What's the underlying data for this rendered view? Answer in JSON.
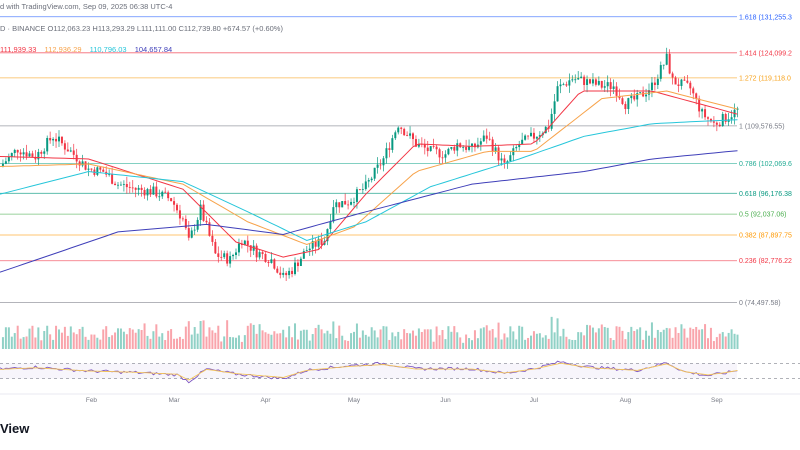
{
  "header": {
    "source_line": "D · BINANCE  O112,063.23  H113,293.29  L111,111.00  C112,739.80  +674.57 (+0.60%)",
    "published_line": "d with TradingView.com, Sep 09, 2025 06:38 UTC-4",
    "moving_averages": [
      {
        "value": "111,939.33",
        "color": "#f23645"
      },
      {
        "value": "112,936.29",
        "color": "#f7a34b"
      },
      {
        "value": "110,796.03",
        "color": "#26c6da"
      },
      {
        "value": "104,657.84",
        "color": "#3f3fb9"
      }
    ]
  },
  "footer": {
    "logo_text": "View"
  },
  "colors": {
    "up": "#089981",
    "down": "#f23645",
    "rsi": "#7e57c2",
    "rsi_ma": "#f4c45a"
  },
  "chart_data": {
    "type": "candlestick",
    "title": "",
    "x_axis_labels": [
      "Feb",
      "Mar",
      "Apr",
      "May",
      "Jun",
      "Jul",
      "Aug",
      "Sep"
    ],
    "x_month_anchors": [
      {
        "label": "Feb",
        "day": 31
      },
      {
        "label": "Mar",
        "day": 59
      },
      {
        "label": "Apr",
        "day": 90
      },
      {
        "label": "May",
        "day": 120
      },
      {
        "label": "Jun",
        "day": 151
      },
      {
        "label": "Jul",
        "day": 181
      },
      {
        "label": "Aug",
        "day": 212
      },
      {
        "label": "Sep",
        "day": 243
      }
    ],
    "ylim": [
      71000,
      133000
    ],
    "fib_levels": [
      {
        "label": "1.618 (131,255.3",
        "price": 131255.3,
        "color": "#2962ff"
      },
      {
        "label": "1.414 (124,099.2",
        "price": 124099.2,
        "color": "#f23645"
      },
      {
        "label": "1.272 (119,118.0",
        "price": 119118.0,
        "color": "#f7a21b"
      },
      {
        "label": "1 (109,576.55)",
        "price": 109576.55,
        "color": "#787b86"
      },
      {
        "label": "0.786 (102,069.6",
        "price": 102069.6,
        "color": "#22ab94"
      },
      {
        "label": "0.618 (96,176.38",
        "price": 96176.38,
        "color": "#089981"
      },
      {
        "label": "0.5 (92,037.06)",
        "price": 92037.06,
        "color": "#4caf50"
      },
      {
        "label": "0.382 (87,897.75",
        "price": 87897.75,
        "color": "#ff9800"
      },
      {
        "label": "0.236 (82,776.22",
        "price": 82776.22,
        "color": "#f23645"
      },
      {
        "label": "0 (74,497.58)",
        "price": 74497.58,
        "color": "#787b86"
      }
    ],
    "close_path": [
      {
        "day": 0,
        "price": 101500
      },
      {
        "day": 6,
        "price": 105000
      },
      {
        "day": 12,
        "price": 103500
      },
      {
        "day": 18,
        "price": 107500
      },
      {
        "day": 24,
        "price": 104500
      },
      {
        "day": 30,
        "price": 101000
      },
      {
        "day": 35,
        "price": 100500
      },
      {
        "day": 40,
        "price": 98000
      },
      {
        "day": 46,
        "price": 97000
      },
      {
        "day": 52,
        "price": 96500
      },
      {
        "day": 58,
        "price": 95000
      },
      {
        "day": 62,
        "price": 91000
      },
      {
        "day": 64,
        "price": 86500
      },
      {
        "day": 68,
        "price": 93000
      },
      {
        "day": 73,
        "price": 84000
      },
      {
        "day": 78,
        "price": 83000
      },
      {
        "day": 82,
        "price": 87000
      },
      {
        "day": 87,
        "price": 84500
      },
      {
        "day": 92,
        "price": 83000
      },
      {
        "day": 96,
        "price": 79500
      },
      {
        "day": 99,
        "price": 81000
      },
      {
        "day": 104,
        "price": 85000
      },
      {
        "day": 110,
        "price": 87000
      },
      {
        "day": 113,
        "price": 94000
      },
      {
        "day": 118,
        "price": 94500
      },
      {
        "day": 124,
        "price": 97500
      },
      {
        "day": 130,
        "price": 103000
      },
      {
        "day": 135,
        "price": 110000
      },
      {
        "day": 141,
        "price": 106000
      },
      {
        "day": 146,
        "price": 104500
      },
      {
        "day": 151,
        "price": 104000
      },
      {
        "day": 155,
        "price": 106000
      },
      {
        "day": 160,
        "price": 105000
      },
      {
        "day": 165,
        "price": 107500
      },
      {
        "day": 171,
        "price": 101500
      },
      {
        "day": 176,
        "price": 106000
      },
      {
        "day": 181,
        "price": 107500
      },
      {
        "day": 186,
        "price": 109500
      },
      {
        "day": 189,
        "price": 117000
      },
      {
        "day": 194,
        "price": 119000
      },
      {
        "day": 198,
        "price": 118500
      },
      {
        "day": 204,
        "price": 117500
      },
      {
        "day": 208,
        "price": 117500
      },
      {
        "day": 212,
        "price": 114000
      },
      {
        "day": 216,
        "price": 115000
      },
      {
        "day": 221,
        "price": 117500
      },
      {
        "day": 226,
        "price": 123000
      },
      {
        "day": 228,
        "price": 118500
      },
      {
        "day": 234,
        "price": 117000
      },
      {
        "day": 238,
        "price": 112000
      },
      {
        "day": 242,
        "price": 110000
      },
      {
        "day": 246,
        "price": 111200
      },
      {
        "day": 250,
        "price": 112700
      }
    ],
    "moving_averages_path": [
      {
        "name": "MA fast",
        "color": "#f23645",
        "points": [
          [
            0,
            103500
          ],
          [
            30,
            103000
          ],
          [
            62,
            97000
          ],
          [
            80,
            86500
          ],
          [
            96,
            83500
          ],
          [
            108,
            85000
          ],
          [
            124,
            96000
          ],
          [
            141,
            106000
          ],
          [
            160,
            105500
          ],
          [
            181,
            106000
          ],
          [
            197,
            116500
          ],
          [
            221,
            116500
          ],
          [
            240,
            113500
          ],
          [
            250,
            111900
          ]
        ]
      },
      {
        "name": "MA mid",
        "color": "#f7a34b",
        "points": [
          [
            0,
            101500
          ],
          [
            30,
            102000
          ],
          [
            62,
            98000
          ],
          [
            84,
            90500
          ],
          [
            104,
            86000
          ],
          [
            120,
            89500
          ],
          [
            141,
            100500
          ],
          [
            165,
            104500
          ],
          [
            181,
            104500
          ],
          [
            204,
            115000
          ],
          [
            226,
            116500
          ],
          [
            250,
            112900
          ]
        ]
      },
      {
        "name": "MA slow",
        "color": "#26c6da",
        "points": [
          [
            0,
            96000
          ],
          [
            30,
            100500
          ],
          [
            62,
            98500
          ],
          [
            84,
            92500
          ],
          [
            104,
            86800
          ],
          [
            124,
            90500
          ],
          [
            146,
            97500
          ],
          [
            176,
            103000
          ],
          [
            198,
            107500
          ],
          [
            221,
            110000
          ],
          [
            238,
            110500
          ],
          [
            250,
            110800
          ]
        ]
      },
      {
        "name": "MA long",
        "color": "#3f3fb9",
        "points": [
          [
            0,
            80500
          ],
          [
            40,
            88500
          ],
          [
            70,
            90000
          ],
          [
            96,
            88000
          ],
          [
            124,
            92500
          ],
          [
            160,
            98000
          ],
          [
            198,
            100500
          ],
          [
            221,
            103000
          ],
          [
            250,
            104650
          ]
        ]
      }
    ],
    "rsi_levels": [
      70,
      30
    ],
    "rsi_path": [
      [
        0,
        55
      ],
      [
        12,
        60
      ],
      [
        30,
        50
      ],
      [
        46,
        46
      ],
      [
        60,
        40
      ],
      [
        64,
        22
      ],
      [
        70,
        55
      ],
      [
        80,
        42
      ],
      [
        96,
        30
      ],
      [
        104,
        52
      ],
      [
        118,
        64
      ],
      [
        130,
        70
      ],
      [
        141,
        56
      ],
      [
        160,
        56
      ],
      [
        171,
        44
      ],
      [
        181,
        56
      ],
      [
        190,
        74
      ],
      [
        200,
        60
      ],
      [
        216,
        52
      ],
      [
        226,
        72
      ],
      [
        232,
        48
      ],
      [
        240,
        38
      ],
      [
        246,
        45
      ],
      [
        250,
        52
      ]
    ]
  }
}
